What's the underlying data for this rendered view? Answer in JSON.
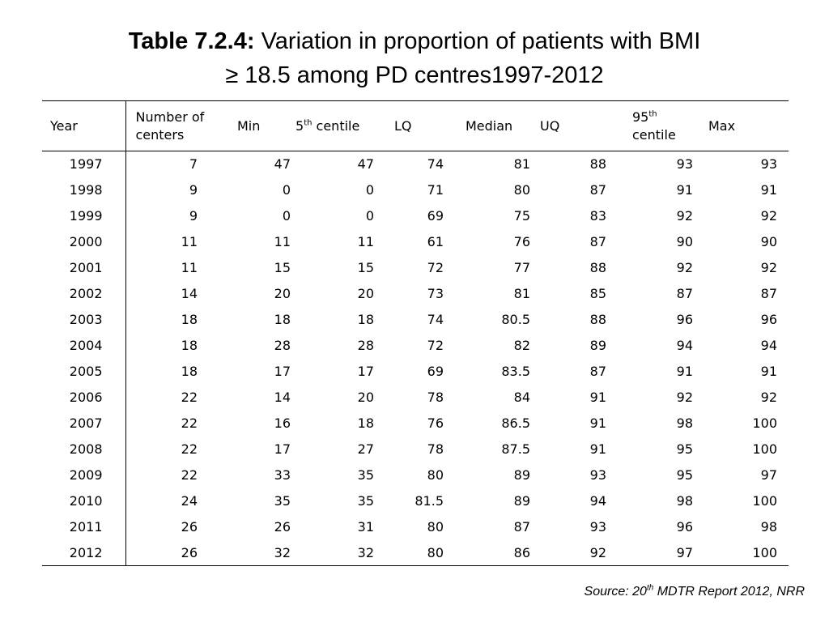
{
  "title": {
    "bold": "Table 7.2.4:",
    "rest": " Variation in proportion of patients with BMI",
    "line2": "≥ 18.5 among PD centres1997-2012"
  },
  "headers": {
    "year": "Year",
    "centers_l1": "Number of",
    "centers_l2": "centers",
    "min": "Min",
    "p5_num": "5",
    "p5_sup": "th",
    "p5_rest": " centile",
    "lq": "LQ",
    "median": "Median",
    "uq": "UQ",
    "p95_num": "95",
    "p95_sup": "th",
    "p95_l2": "centile",
    "max": "Max"
  },
  "rows": [
    [
      "1997",
      "7",
      "47",
      "47",
      "74",
      "81",
      "88",
      "93",
      "93"
    ],
    [
      "1998",
      "9",
      "0",
      "0",
      "71",
      "80",
      "87",
      "91",
      "91"
    ],
    [
      "1999",
      "9",
      "0",
      "0",
      "69",
      "75",
      "83",
      "92",
      "92"
    ],
    [
      "2000",
      "11",
      "11",
      "11",
      "61",
      "76",
      "87",
      "90",
      "90"
    ],
    [
      "2001",
      "11",
      "15",
      "15",
      "72",
      "77",
      "88",
      "92",
      "92"
    ],
    [
      "2002",
      "14",
      "20",
      "20",
      "73",
      "81",
      "85",
      "87",
      "87"
    ],
    [
      "2003",
      "18",
      "18",
      "18",
      "74",
      "80.5",
      "88",
      "96",
      "96"
    ],
    [
      "2004",
      "18",
      "28",
      "28",
      "72",
      "82",
      "89",
      "94",
      "94"
    ],
    [
      "2005",
      "18",
      "17",
      "17",
      "69",
      "83.5",
      "87",
      "91",
      "91"
    ],
    [
      "2006",
      "22",
      "14",
      "20",
      "78",
      "84",
      "91",
      "92",
      "92"
    ],
    [
      "2007",
      "22",
      "16",
      "18",
      "76",
      "86.5",
      "91",
      "98",
      "100"
    ],
    [
      "2008",
      "22",
      "17",
      "27",
      "78",
      "87.5",
      "91",
      "95",
      "100"
    ],
    [
      "2009",
      "22",
      "33",
      "35",
      "80",
      "89",
      "93",
      "95",
      "97"
    ],
    [
      "2010",
      "24",
      "35",
      "35",
      "81.5",
      "89",
      "94",
      "98",
      "100"
    ],
    [
      "2011",
      "26",
      "26",
      "31",
      "80",
      "87",
      "93",
      "96",
      "98"
    ],
    [
      "2012",
      "26",
      "32",
      "32",
      "80",
      "86",
      "92",
      "97",
      "100"
    ]
  ],
  "source": {
    "pre": "Source: 20",
    "sup": "th",
    "post": " MDTR Report 2012, NRR"
  }
}
